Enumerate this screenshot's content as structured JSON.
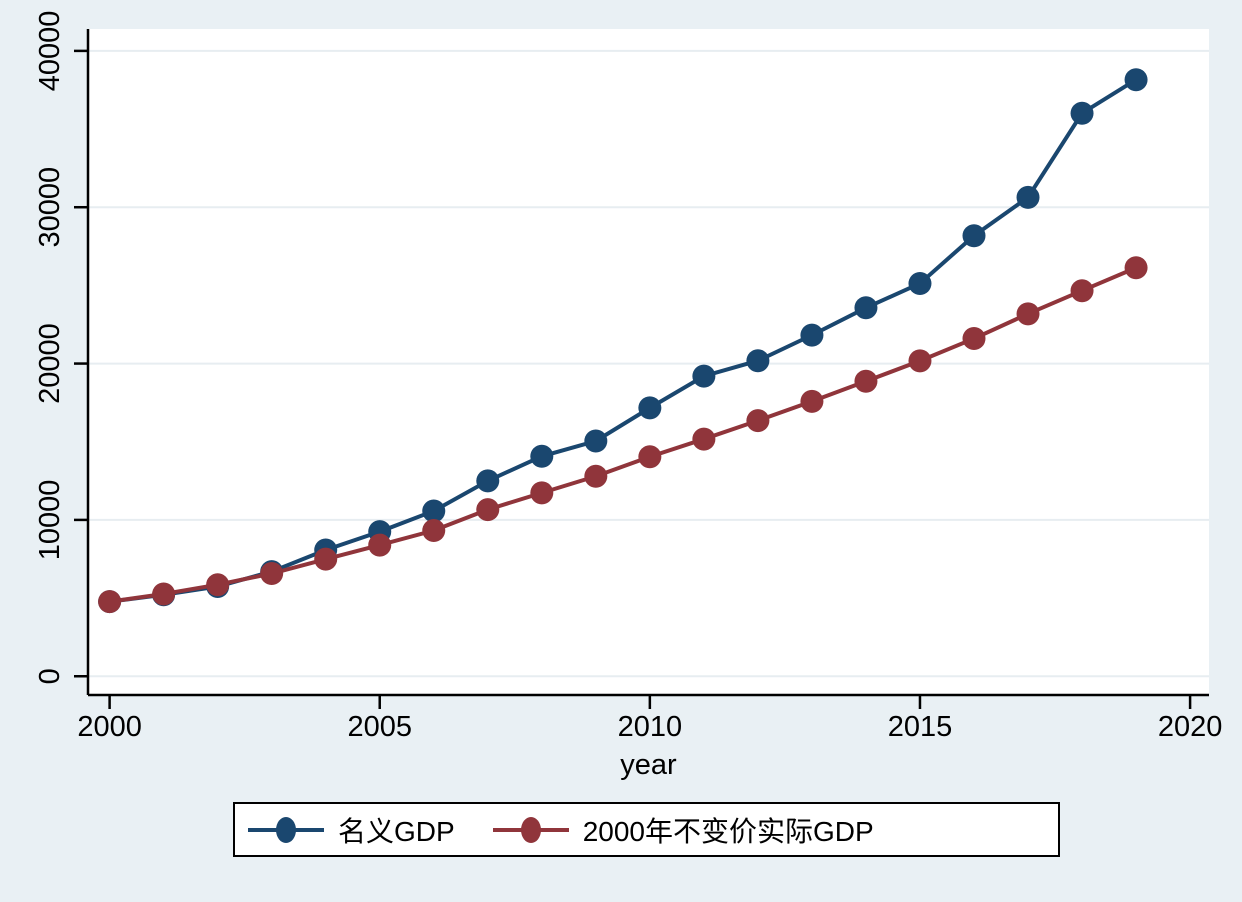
{
  "chart_data": {
    "type": "line",
    "x": [
      2000,
      2001,
      2002,
      2003,
      2004,
      2005,
      2006,
      2007,
      2008,
      2009,
      2010,
      2011,
      2012,
      2013,
      2014,
      2015,
      2016,
      2017,
      2018,
      2019
    ],
    "series": [
      {
        "name": "名义GDP",
        "color": "#1a476f",
        "values": [
          4771,
          5210,
          5741,
          6694,
          8073,
          9248,
          10572,
          12494,
          14070,
          15046,
          17166,
          19196,
          20182,
          21818,
          23568,
          25123,
          28179,
          30633,
          36012,
          38155
        ]
      },
      {
        "name": "2000年不变价实际GDP",
        "color": "#90353b",
        "values": [
          4771,
          5260,
          5855,
          6570,
          7490,
          8390,
          9320,
          10660,
          11730,
          12790,
          14040,
          15170,
          16350,
          17580,
          18870,
          20170,
          21600,
          23180,
          24660,
          26130
        ]
      }
    ],
    "title": "",
    "xlabel": "year",
    "ylabel": "",
    "xticks": [
      2000,
      2005,
      2010,
      2015,
      2020
    ],
    "yticks": [
      0,
      10000,
      20000,
      30000,
      40000
    ],
    "xlim": [
      1999.6,
      2020.35
    ],
    "ylim": [
      -1200,
      41400
    ],
    "grid": "horizontal-only",
    "legend_position": "bottom-center",
    "marker": "circle",
    "background_color": "#e9f0f4",
    "plot_background": "#ffffff",
    "grid_color": "#e7edf1",
    "axis_color": "#000000",
    "tick_label_color": "#000000"
  }
}
